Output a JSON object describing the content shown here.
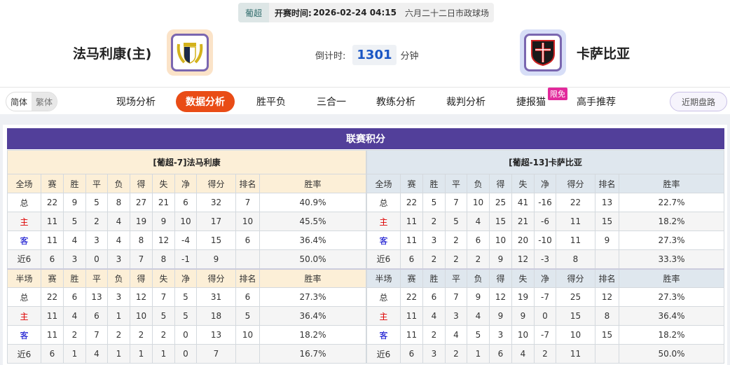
{
  "match": {
    "league": "葡超",
    "time_label": "开赛时间:",
    "time": "2026-02-24 04:15",
    "venue": "六月二十二日市政球场"
  },
  "home": {
    "name": "法马利康(主)",
    "logo": "famalicao-crest"
  },
  "away": {
    "name": "卡萨比亚",
    "logo": "casa-pia-crest"
  },
  "countdown": {
    "label": "倒计时:",
    "value": "1301",
    "unit": "分钟"
  },
  "lang": {
    "simplified": "简体",
    "traditional": "繁体"
  },
  "nav": {
    "items": [
      "现场分析",
      "数据分析",
      "胜平负",
      "三合一",
      "教练分析",
      "裁判分析",
      "捷报猫",
      "高手推荐"
    ],
    "active": 1,
    "tag": "限免",
    "recent": "近期盘路"
  },
  "colors": {
    "accent": "#e94c16",
    "title_bar": "#523f9a",
    "home_header": "#fcefd7",
    "away_header": "#dfe7ee"
  },
  "standings": {
    "title": "联赛积分",
    "columns_full": [
      "全场",
      "赛",
      "胜",
      "平",
      "负",
      "得",
      "失",
      "净",
      "得分",
      "排名",
      "胜率"
    ],
    "columns_half": [
      "半场",
      "赛",
      "胜",
      "平",
      "负",
      "得",
      "失",
      "净",
      "得分",
      "排名",
      "胜率"
    ],
    "home": {
      "header": "[葡超-7]法马利康",
      "full": [
        [
          "总",
          "22",
          "9",
          "5",
          "8",
          "27",
          "21",
          "6",
          "32",
          "7",
          "40.9%"
        ],
        [
          "主",
          "11",
          "5",
          "2",
          "4",
          "19",
          "9",
          "10",
          "17",
          "10",
          "45.5%"
        ],
        [
          "客",
          "11",
          "4",
          "3",
          "4",
          "8",
          "12",
          "-4",
          "15",
          "6",
          "36.4%"
        ],
        [
          "近6",
          "6",
          "3",
          "0",
          "3",
          "7",
          "8",
          "-1",
          "9",
          "",
          "50.0%"
        ]
      ],
      "half": [
        [
          "总",
          "22",
          "6",
          "13",
          "3",
          "12",
          "7",
          "5",
          "31",
          "6",
          "27.3%"
        ],
        [
          "主",
          "11",
          "4",
          "6",
          "1",
          "10",
          "5",
          "5",
          "18",
          "5",
          "36.4%"
        ],
        [
          "客",
          "11",
          "2",
          "7",
          "2",
          "2",
          "2",
          "0",
          "13",
          "10",
          "18.2%"
        ],
        [
          "近6",
          "6",
          "1",
          "4",
          "1",
          "1",
          "1",
          "0",
          "7",
          "",
          "16.7%"
        ]
      ]
    },
    "away": {
      "header": "[葡超-13]卡萨比亚",
      "full": [
        [
          "总",
          "22",
          "5",
          "7",
          "10",
          "25",
          "41",
          "-16",
          "22",
          "13",
          "22.7%"
        ],
        [
          "主",
          "11",
          "2",
          "5",
          "4",
          "15",
          "21",
          "-6",
          "11",
          "15",
          "18.2%"
        ],
        [
          "客",
          "11",
          "3",
          "2",
          "6",
          "10",
          "20",
          "-10",
          "11",
          "9",
          "27.3%"
        ],
        [
          "近6",
          "6",
          "2",
          "2",
          "2",
          "9",
          "12",
          "-3",
          "8",
          "",
          "33.3%"
        ]
      ],
      "half": [
        [
          "总",
          "22",
          "6",
          "7",
          "9",
          "12",
          "19",
          "-7",
          "25",
          "12",
          "27.3%"
        ],
        [
          "主",
          "11",
          "4",
          "3",
          "4",
          "9",
          "9",
          "0",
          "15",
          "8",
          "36.4%"
        ],
        [
          "客",
          "11",
          "2",
          "4",
          "5",
          "3",
          "10",
          "-7",
          "10",
          "15",
          "18.2%"
        ],
        [
          "近6",
          "6",
          "3",
          "2",
          "1",
          "6",
          "4",
          "2",
          "11",
          "",
          "50.0%"
        ]
      ]
    }
  }
}
